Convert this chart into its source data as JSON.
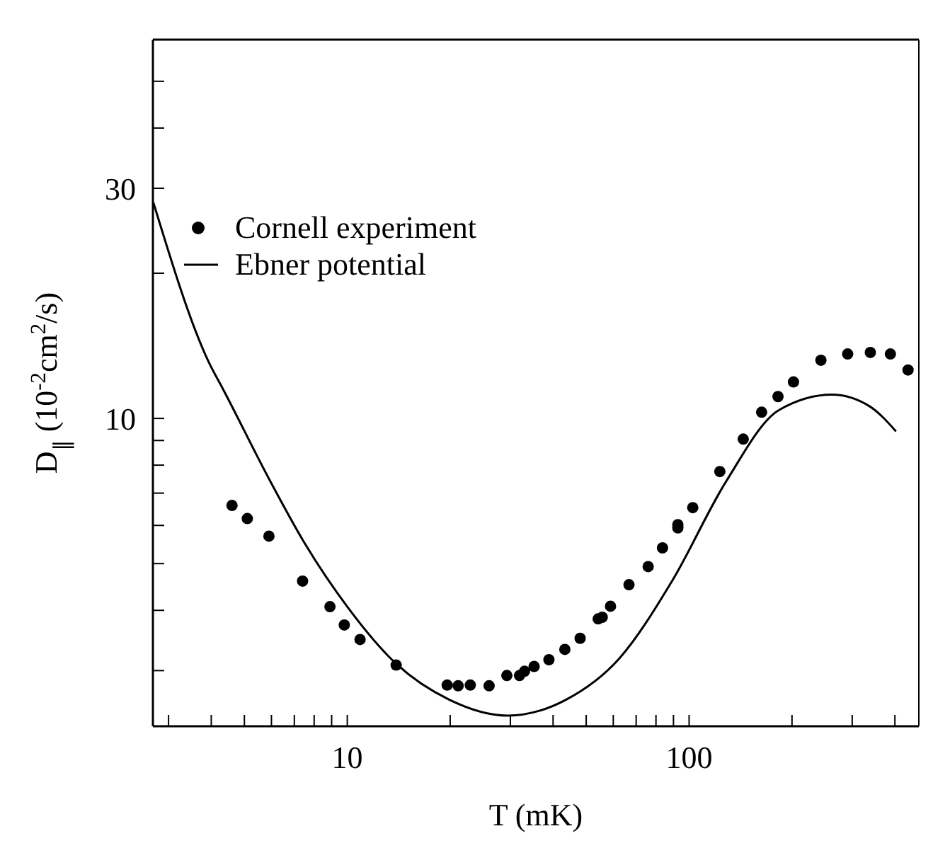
{
  "chart_data": {
    "type": "scatter",
    "xlabel": "T (mK)",
    "ylabel": "D$_{∥}$ (10$^{-2}$cm$^{2}$/s)",
    "log": "xy",
    "xlim": [
      2.7,
      470
    ],
    "ylim": [
      2.3,
      61
    ],
    "xticks": [
      {
        "value": 3,
        "label": null
      },
      {
        "value": 4,
        "label": null
      },
      {
        "value": 5,
        "label": null
      },
      {
        "value": 6,
        "label": null
      },
      {
        "value": 7,
        "label": null
      },
      {
        "value": 8,
        "label": null
      },
      {
        "value": 9,
        "label": null
      },
      10,
      {
        "value": 20,
        "label": null
      },
      {
        "value": 30,
        "label": null
      },
      {
        "value": 40,
        "label": null
      },
      {
        "value": 50,
        "label": null
      },
      {
        "value": 60,
        "label": null
      },
      {
        "value": 70,
        "label": null
      },
      {
        "value": 80,
        "label": null
      },
      {
        "value": 90,
        "label": null
      },
      100,
      {
        "value": 200,
        "label": null
      },
      {
        "value": 300,
        "label": null
      },
      {
        "value": 400,
        "label": null
      }
    ],
    "yticks": [
      {
        "value": 3,
        "label": null
      },
      {
        "value": 4,
        "label": null
      },
      {
        "value": 5,
        "label": null
      },
      {
        "value": 6,
        "label": null
      },
      {
        "value": 7,
        "label": null
      },
      {
        "value": 8,
        "label": null
      },
      {
        "value": 9,
        "label": null
      },
      10,
      {
        "value": 20,
        "label": null
      },
      30,
      {
        "value": 40,
        "label": null
      },
      {
        "value": 50,
        "label": null
      }
    ],
    "legend": "top left",
    "series": [
      {
        "name": "Cornell experiment",
        "marker": "circle",
        "color": "#000000",
        "x": [
          4.6,
          5.1,
          5.9,
          7.4,
          8.9,
          9.8,
          10.9,
          13.9,
          19.6,
          21.1,
          22.9,
          26.0,
          29.3,
          31.9,
          33.0,
          35.2,
          38.9,
          43.3,
          48.0,
          54.2,
          55.7,
          58.9,
          66.7,
          75.9,
          83.6,
          92.7,
          92.7,
          102.5,
          123,
          144,
          163,
          182,
          202,
          243,
          291,
          339,
          388,
          437
        ],
        "values": [
          6.6,
          6.2,
          5.7,
          4.6,
          4.07,
          3.73,
          3.48,
          3.08,
          2.8,
          2.79,
          2.8,
          2.79,
          2.93,
          2.93,
          2.99,
          3.06,
          3.16,
          3.32,
          3.5,
          3.84,
          3.87,
          4.08,
          4.52,
          4.93,
          5.39,
          5.93,
          6.02,
          6.53,
          7.76,
          9.06,
          10.3,
          11.1,
          11.9,
          13.2,
          13.6,
          13.7,
          13.6,
          12.6
        ]
      },
      {
        "name": "Ebner potential",
        "type": "line",
        "line_style": "solid",
        "color": "#000000",
        "x": [
          2.71,
          3.95,
          4.33,
          5.97,
          7.54,
          10.0,
          13.9,
          19.9,
          29.4,
          43.6,
          62.5,
          89.3,
          128,
          183,
          262,
          337,
          403
        ],
        "values": [
          28,
          13.0,
          11.5,
          7.38,
          5.48,
          4.07,
          3.1,
          2.61,
          2.42,
          2.61,
          3.18,
          4.61,
          7.38,
          10.4,
          11.2,
          10.6,
          9.4
        ]
      }
    ]
  }
}
